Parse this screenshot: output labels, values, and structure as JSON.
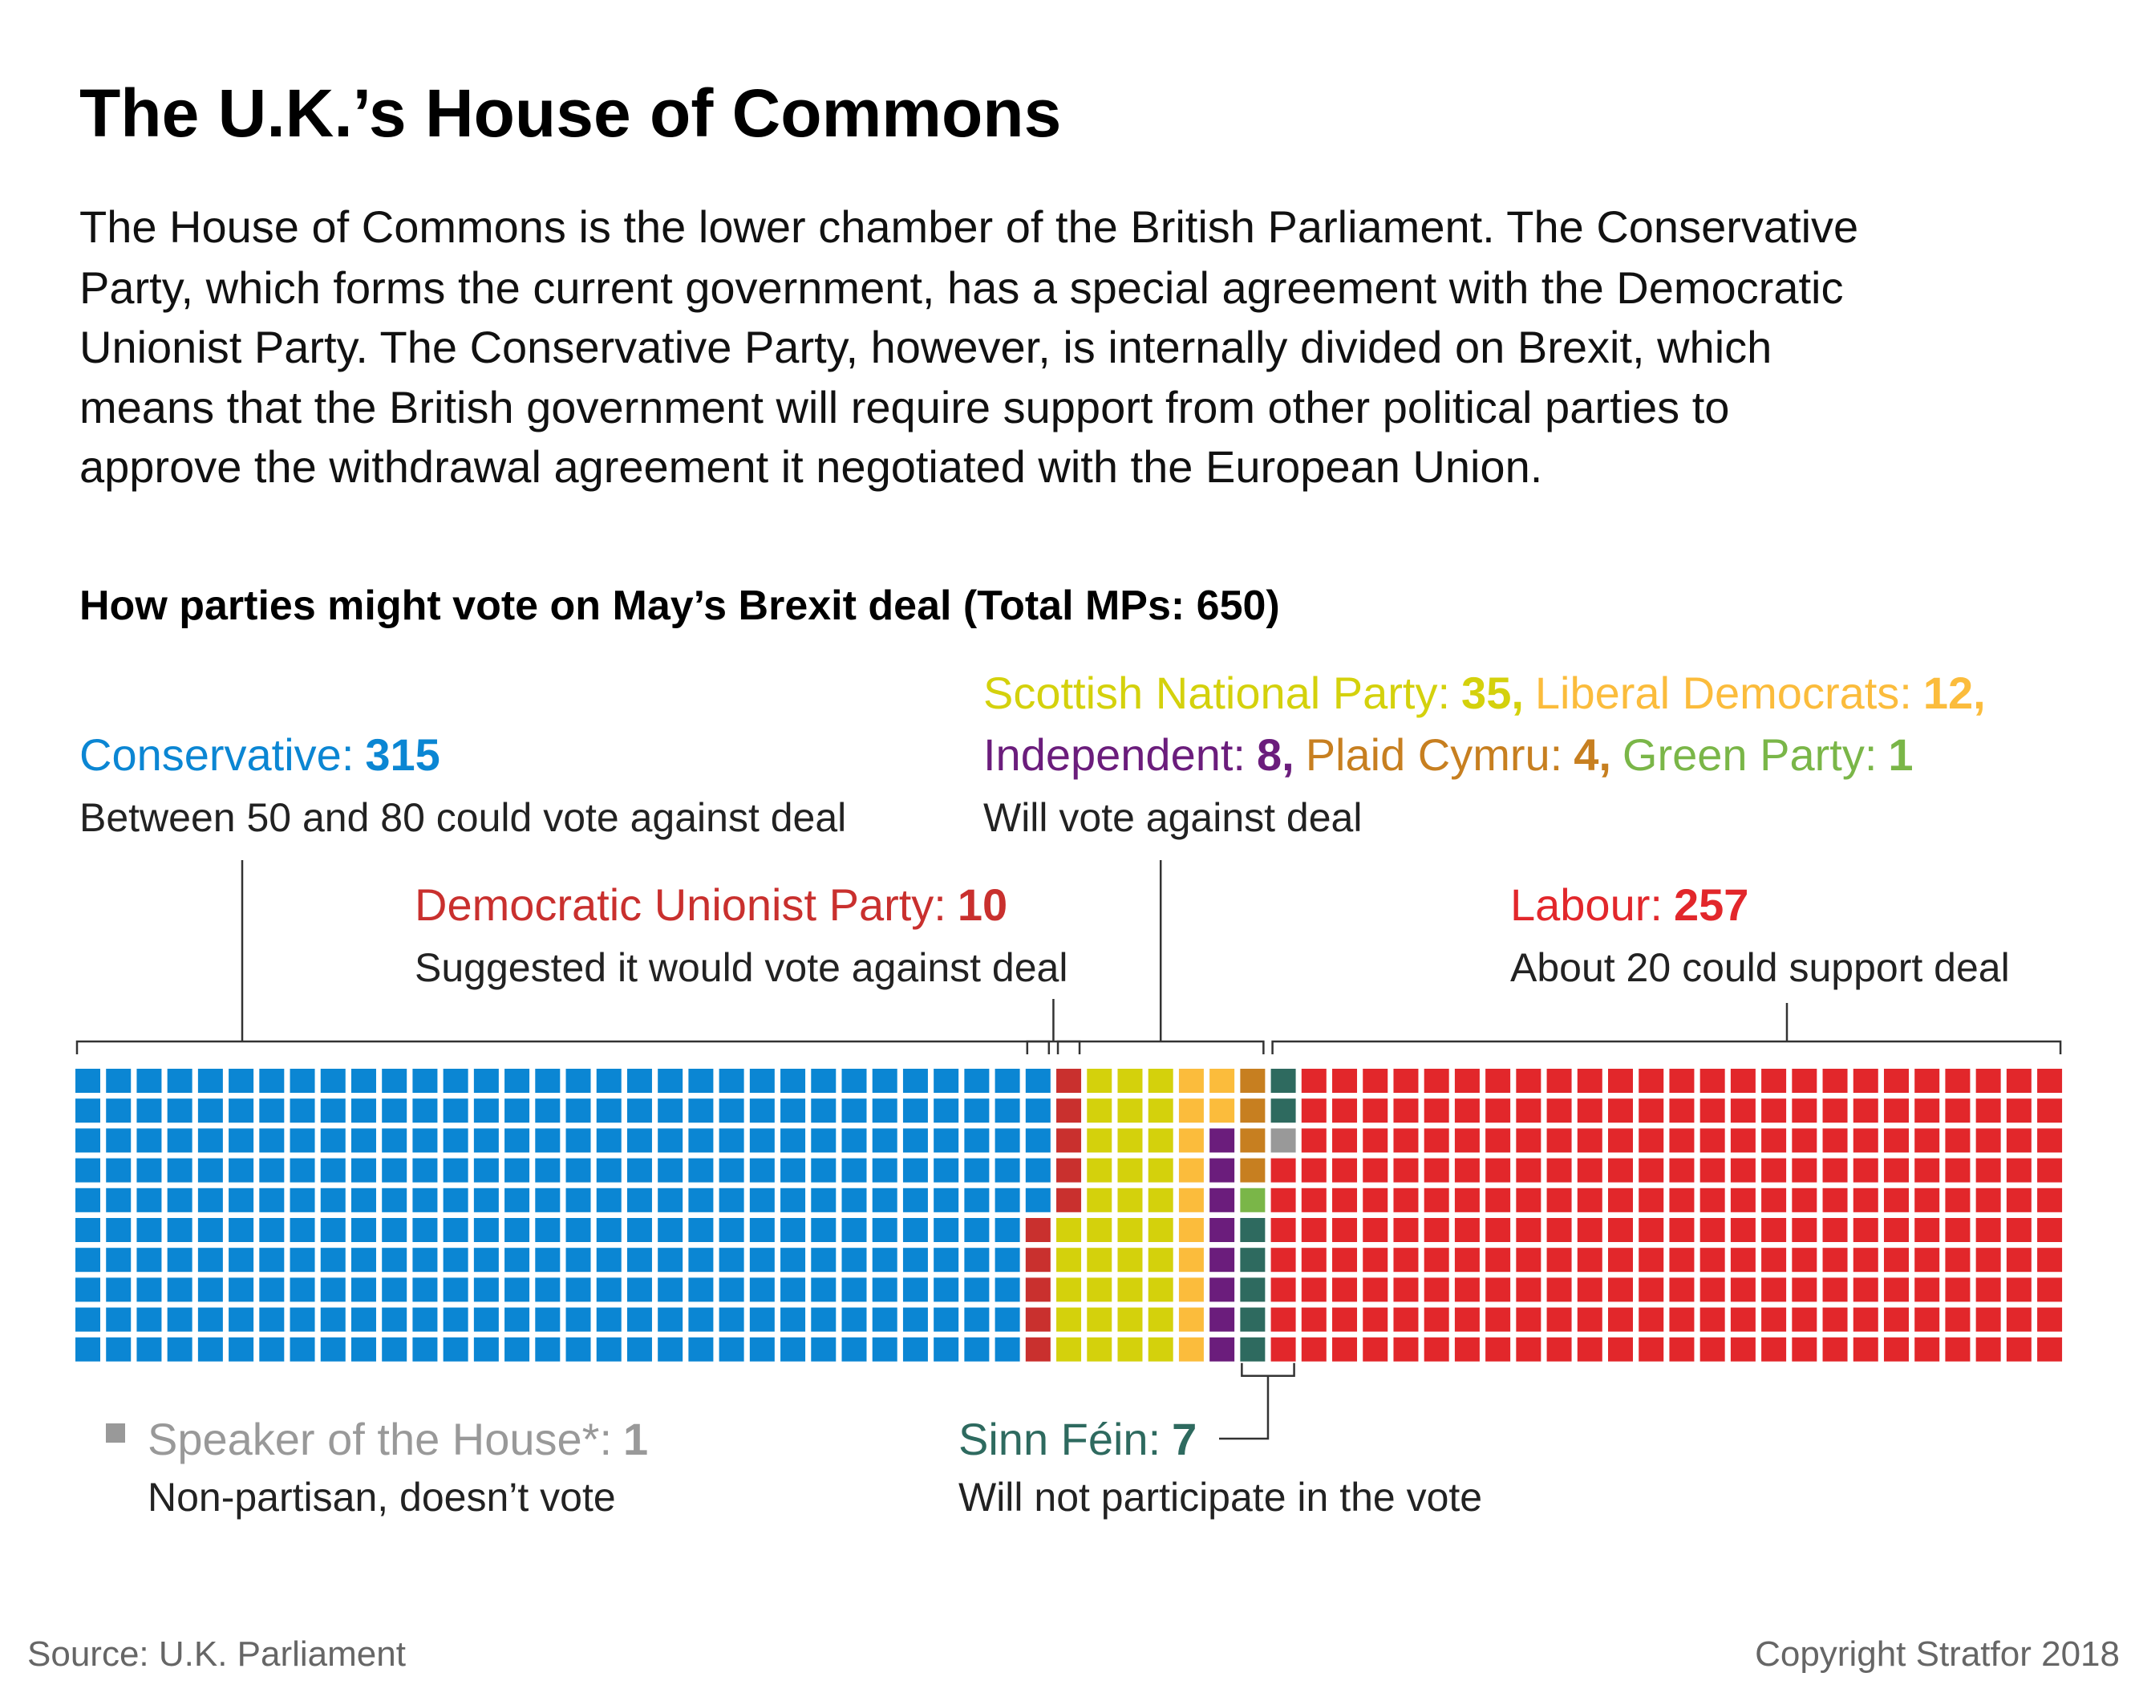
{
  "title": "The U.K.’s House of Commons",
  "subtitle": [
    "The House of Commons is the lower chamber of the British Parliament. The Conservative",
    "Party, which forms the current government, has a special agreement with the Democratic",
    "Unionist Party. The Conservative Party, however, is internally divided on Brexit, which",
    "means that the British government will require support from other political parties to",
    "approve the withdrawal agreement it negotiated with the European Union."
  ],
  "chart_data": {
    "type": "waffle",
    "title": "How parties might vote on May’s Brexit deal (Total MPs: 650)",
    "series": [
      {
        "name": "Conservative:",
        "values": [
          315
        ],
        "color": "#0b86d3",
        "note": "Between 50 and 80 could vote against deal"
      },
      {
        "name": "Democratic Unionist Party:",
        "values": [
          10
        ],
        "color": "#c9302e",
        "note": "Suggested it would vote against deal"
      },
      {
        "name": "Scottish National Party:",
        "values": [
          35
        ],
        "value_labels": [
          "35,"
        ],
        "color": "#d4d10c",
        "note": "Will vote against deal"
      },
      {
        "name": "Liberal Democrats:",
        "values": [
          12
        ],
        "value_labels": [
          "12,"
        ],
        "color": "#fbbc3c"
      },
      {
        "name": "Independent:",
        "values": [
          8
        ],
        "value_labels": [
          "8,"
        ],
        "color": "#6b1d7c"
      },
      {
        "name": "Plaid Cymru:",
        "values": [
          4
        ],
        "value_labels": [
          "4,"
        ],
        "color": "#c77f20"
      },
      {
        "name": "Green Party:",
        "values": [
          1
        ],
        "color": "#7ab648"
      },
      {
        "name": "Sinn Féin:",
        "values": [
          7
        ],
        "color": "#2e6a5f",
        "note": "Will not participate in the vote"
      },
      {
        "name": "Speaker of the House*:",
        "values": [
          1
        ],
        "color": "#999999",
        "note": "Non-partisan, doesn’t vote"
      },
      {
        "name": "Labour:",
        "values": [
          257
        ],
        "color": "#e2272b",
        "note": "About 20 could support deal"
      }
    ]
  },
  "source": "Source: U.K. Parliament",
  "copyright": "Copyright Stratfor 2018"
}
